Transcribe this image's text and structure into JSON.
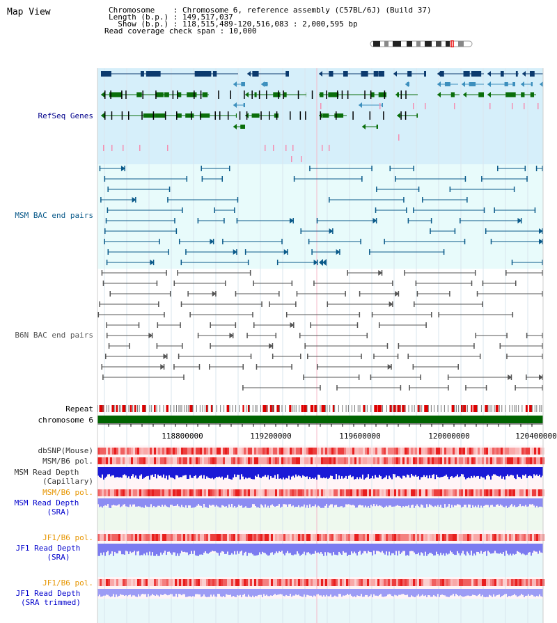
{
  "view_title": "Map View",
  "header": {
    "chromosome_line": "Chromosome    : Chromosome 6, reference assembly (C57BL/6J) (Build 37)",
    "length_line": "Length (b.p.) : 149,517,037",
    "show_line": "  Show (b.p.) : 118,515,489-120,516,083 : 2,000,595 bp",
    "coverage_line": "Read coverage check span : 10,000"
  },
  "tracks": {
    "refseq": "RefSeq Genes",
    "msm_bac": "MSM BAC end pairs",
    "b6n_bac": "B6N BAC end pairs",
    "repeat": "Repeat",
    "chromosome": "chromosome 6",
    "dbsnp": "dbSNP(Mouse)",
    "msm_b6_pol_1": "MSM/B6 pol.",
    "msm_depth_cap_1": "MSM Read Depth",
    "msm_depth_cap_2": "(Capillary)",
    "msm_b6_pol_2": "MSM/B6 pol.",
    "msm_depth_sra_1": "MSM Read Depth",
    "msm_depth_sra_2": "(SRA)",
    "jf1_pol_1": "JF1/B6 pol.",
    "jf1_depth_sra_1": "JF1 Read Depth",
    "jf1_depth_sra_2": "(SRA)",
    "jf1_pol_2": "JF1/B6 pol.",
    "jf1_depth_trim_1": "JF1 Read Depth",
    "jf1_depth_trim_2": "(SRA trimmed)"
  },
  "axis": {
    "ticks": [
      "118800000",
      "119200000",
      "119600000",
      "120000000",
      "120400000"
    ]
  },
  "colors": {
    "refseq_text": "#00008b",
    "msm_text": "#0a5a8a",
    "b6n_text": "#555555",
    "orange_text": "#e69500",
    "blue_text": "#0000cc",
    "chrom_green": "#006400"
  }
}
